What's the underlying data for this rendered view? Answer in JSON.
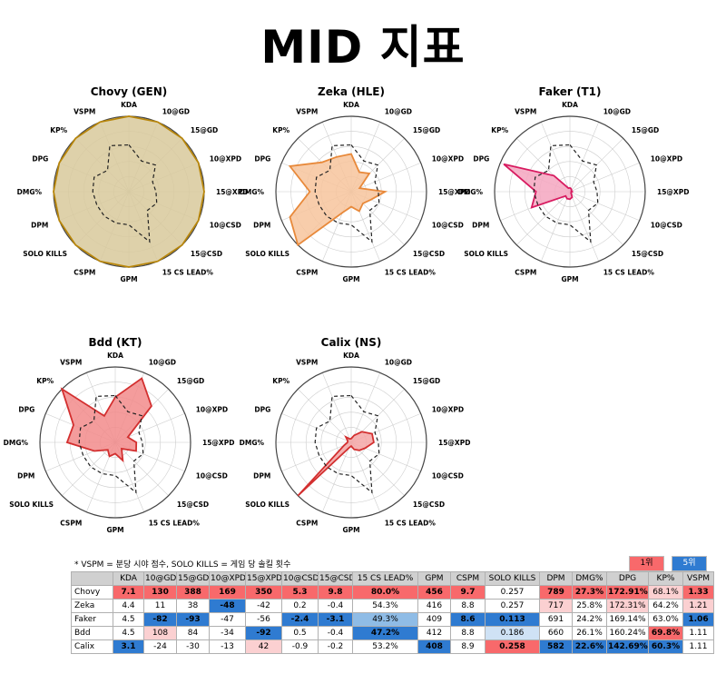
{
  "title": "MID 지표",
  "chart_data": {
    "type": "radar",
    "axes": [
      "KDA",
      "10@GD",
      "15@GD",
      "10@XPD",
      "15@XPD",
      "10@CSD",
      "15@CSD",
      "15 CS LEAD%",
      "GPM",
      "CSPM",
      "SOLO KILLS",
      "DPM",
      "DMG%",
      "DPG",
      "KP%",
      "VSPM"
    ],
    "rlim": [
      0,
      1
    ],
    "reference_style": "dashed black (league average)",
    "reference": [
      0.62,
      0.44,
      0.5,
      0.34,
      0.36,
      0.4,
      0.35,
      0.72,
      0.44,
      0.45,
      0.46,
      0.46,
      0.48,
      0.5,
      0.4,
      0.66
    ],
    "players": [
      {
        "name": "Chovy (GEN)",
        "color": "#b8860b",
        "fill": "#d8c99b",
        "values": [
          1,
          1,
          1,
          1,
          1,
          1,
          1,
          1,
          1,
          1,
          1,
          1,
          1,
          1,
          1,
          1
        ]
      },
      {
        "name": "Zeka (HLE)",
        "color": "#e8893a",
        "fill": "#f7c49c",
        "values": [
          0.5,
          0.28,
          0.34,
          0.12,
          0.45,
          0.28,
          0.22,
          0.28,
          0.2,
          0.3,
          1.0,
          0.88,
          0.55,
          0.88,
          0.55,
          0.5
        ]
      },
      {
        "name": "Faker (T1)",
        "color": "#d81b60",
        "fill": "#f4a6c0",
        "values": [
          0.05,
          0.04,
          0.03,
          0.02,
          0.03,
          0.02,
          0.02,
          0.08,
          0.1,
          0.1,
          0.08,
          0.55,
          0.45,
          0.95,
          0.3,
          0.05
        ]
      },
      {
        "name": "Bdd (KT)",
        "color": "#d32f2f",
        "fill": "#f28b8b",
        "values": [
          0.6,
          0.92,
          0.68,
          0.18,
          0.28,
          0.3,
          0.12,
          0.26,
          0.15,
          0.2,
          0.14,
          0.3,
          0.64,
          0.6,
          1.0,
          0.38
        ]
      },
      {
        "name": "Calix (NS)",
        "color": "#d32f2f",
        "fill": "#f4a6a6",
        "values": [
          0.05,
          0.1,
          0.2,
          0.3,
          0.3,
          0.2,
          0.15,
          0.1,
          0.05,
          0.08,
          1.0,
          0.1,
          0.05,
          0.05,
          0.1,
          0.05
        ]
      }
    ]
  },
  "table": {
    "note": "* VSPM = 분당 시야 점수, SOLO KILLS = 게임 당 솔킬 횟수",
    "legend_first": "1위",
    "legend_fifth": "5위",
    "legend_first_color": "#f8696b",
    "legend_fifth_color": "#2f7bd1",
    "headers": [
      "",
      "KDA",
      "10@GD",
      "15@GD",
      "10@XPD",
      "15@XPD",
      "10@CSD",
      "15@CSD",
      "15 CS LEAD%",
      "GPM",
      "CSPM",
      "SOLO KILLS",
      "DPM",
      "DMG%",
      "DPG",
      "KP%",
      "VSPM"
    ],
    "rows": [
      {
        "name": "Chovy",
        "cells": [
          {
            "v": "7.1",
            "bg": "#f8696b",
            "b": true
          },
          {
            "v": "130",
            "bg": "#f8696b",
            "b": true
          },
          {
            "v": "388",
            "bg": "#f8696b",
            "b": true
          },
          {
            "v": "169",
            "bg": "#f8696b",
            "b": true
          },
          {
            "v": "350",
            "bg": "#f8696b",
            "b": true
          },
          {
            "v": "5.3",
            "bg": "#f8696b",
            "b": true
          },
          {
            "v": "9.8",
            "bg": "#f8696b",
            "b": true
          },
          {
            "v": "80.0%",
            "bg": "#f8696b",
            "b": true
          },
          {
            "v": "456",
            "bg": "#f8696b",
            "b": true
          },
          {
            "v": "9.7",
            "bg": "#f8696b",
            "b": true
          },
          {
            "v": "0.257",
            "bg": "#ffffff",
            "b": false
          },
          {
            "v": "789",
            "bg": "#f8696b",
            "b": true
          },
          {
            "v": "27.3%",
            "bg": "#f8696b",
            "b": true
          },
          {
            "v": "172.91%",
            "bg": "#f8696b",
            "b": true
          },
          {
            "v": "68.1%",
            "bg": "#fbd0d1",
            "b": false
          },
          {
            "v": "1.33",
            "bg": "#f8696b",
            "b": true
          }
        ]
      },
      {
        "name": "Zeka",
        "cells": [
          {
            "v": "4.4",
            "bg": "#ffffff",
            "b": false
          },
          {
            "v": "11",
            "bg": "#ffffff",
            "b": false
          },
          {
            "v": "38",
            "bg": "#ffffff",
            "b": false
          },
          {
            "v": "-48",
            "bg": "#2f7bd1",
            "b": true
          },
          {
            "v": "-42",
            "bg": "#ffffff",
            "b": false
          },
          {
            "v": "0.2",
            "bg": "#ffffff",
            "b": false
          },
          {
            "v": "-0.4",
            "bg": "#ffffff",
            "b": false
          },
          {
            "v": "54.3%",
            "bg": "#ffffff",
            "b": false
          },
          {
            "v": "416",
            "bg": "#ffffff",
            "b": false
          },
          {
            "v": "8.8",
            "bg": "#ffffff",
            "b": false
          },
          {
            "v": "0.257",
            "bg": "#ffffff",
            "b": false
          },
          {
            "v": "717",
            "bg": "#fbd0d1",
            "b": false
          },
          {
            "v": "25.8%",
            "bg": "#ffffff",
            "b": false
          },
          {
            "v": "172.31%",
            "bg": "#fbd0d1",
            "b": false
          },
          {
            "v": "64.2%",
            "bg": "#ffffff",
            "b": false
          },
          {
            "v": "1.21",
            "bg": "#fbd0d1",
            "b": false
          }
        ]
      },
      {
        "name": "Faker",
        "cells": [
          {
            "v": "4.5",
            "bg": "#ffffff",
            "b": false
          },
          {
            "v": "-82",
            "bg": "#2f7bd1",
            "b": true
          },
          {
            "v": "-93",
            "bg": "#2f7bd1",
            "b": true
          },
          {
            "v": "-47",
            "bg": "#ffffff",
            "b": false
          },
          {
            "v": "-56",
            "bg": "#ffffff",
            "b": false
          },
          {
            "v": "-2.4",
            "bg": "#2f7bd1",
            "b": true
          },
          {
            "v": "-3.1",
            "bg": "#2f7bd1",
            "b": true
          },
          {
            "v": "49.3%",
            "bg": "#8fbce6",
            "b": false
          },
          {
            "v": "409",
            "bg": "#ffffff",
            "b": false
          },
          {
            "v": "8.6",
            "bg": "#2f7bd1",
            "b": true
          },
          {
            "v": "0.113",
            "bg": "#2f7bd1",
            "b": true
          },
          {
            "v": "691",
            "bg": "#ffffff",
            "b": false
          },
          {
            "v": "24.2%",
            "bg": "#ffffff",
            "b": false
          },
          {
            "v": "169.14%",
            "bg": "#ffffff",
            "b": false
          },
          {
            "v": "63.0%",
            "bg": "#ffffff",
            "b": false
          },
          {
            "v": "1.06",
            "bg": "#2f7bd1",
            "b": true
          }
        ]
      },
      {
        "name": "Bdd",
        "cells": [
          {
            "v": "4.5",
            "bg": "#ffffff",
            "b": false
          },
          {
            "v": "108",
            "bg": "#fbd0d1",
            "b": false
          },
          {
            "v": "84",
            "bg": "#ffffff",
            "b": false
          },
          {
            "v": "-34",
            "bg": "#ffffff",
            "b": false
          },
          {
            "v": "-92",
            "bg": "#2f7bd1",
            "b": true
          },
          {
            "v": "0.5",
            "bg": "#ffffff",
            "b": false
          },
          {
            "v": "-0.4",
            "bg": "#ffffff",
            "b": false
          },
          {
            "v": "47.2%",
            "bg": "#2f7bd1",
            "b": true
          },
          {
            "v": "412",
            "bg": "#ffffff",
            "b": false
          },
          {
            "v": "8.8",
            "bg": "#ffffff",
            "b": false
          },
          {
            "v": "0.186",
            "bg": "#cfe2f5",
            "b": false
          },
          {
            "v": "660",
            "bg": "#ffffff",
            "b": false
          },
          {
            "v": "26.1%",
            "bg": "#ffffff",
            "b": false
          },
          {
            "v": "160.24%",
            "bg": "#ffffff",
            "b": false
          },
          {
            "v": "69.8%",
            "bg": "#f8696b",
            "b": true
          },
          {
            "v": "1.11",
            "bg": "#ffffff",
            "b": false
          }
        ]
      },
      {
        "name": "Calix",
        "cells": [
          {
            "v": "3.1",
            "bg": "#2f7bd1",
            "b": true
          },
          {
            "v": "-24",
            "bg": "#ffffff",
            "b": false
          },
          {
            "v": "-30",
            "bg": "#ffffff",
            "b": false
          },
          {
            "v": "-13",
            "bg": "#ffffff",
            "b": false
          },
          {
            "v": "42",
            "bg": "#fbd0d1",
            "b": false
          },
          {
            "v": "-0.9",
            "bg": "#ffffff",
            "b": false
          },
          {
            "v": "-0.2",
            "bg": "#ffffff",
            "b": false
          },
          {
            "v": "53.2%",
            "bg": "#ffffff",
            "b": false
          },
          {
            "v": "408",
            "bg": "#2f7bd1",
            "b": true
          },
          {
            "v": "8.9",
            "bg": "#ffffff",
            "b": false
          },
          {
            "v": "0.258",
            "bg": "#f8696b",
            "b": true
          },
          {
            "v": "582",
            "bg": "#2f7bd1",
            "b": true
          },
          {
            "v": "22.6%",
            "bg": "#2f7bd1",
            "b": true
          },
          {
            "v": "142.69%",
            "bg": "#2f7bd1",
            "b": true
          },
          {
            "v": "60.3%",
            "bg": "#2f7bd1",
            "b": true
          },
          {
            "v": "1.11",
            "bg": "#ffffff",
            "b": false
          }
        ]
      }
    ]
  }
}
